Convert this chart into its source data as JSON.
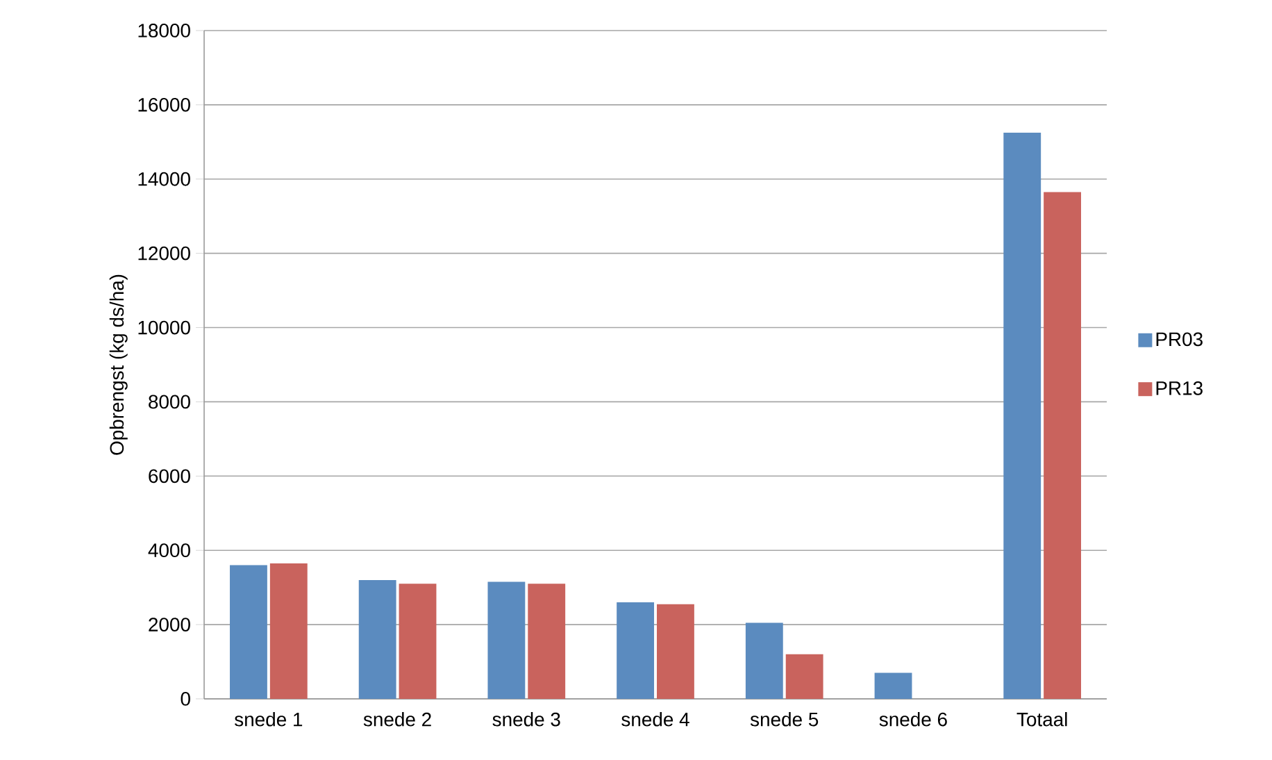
{
  "chart_data": {
    "type": "bar",
    "ylabel": "Opbrengst (kg ds/ha)",
    "categories": [
      "snede 1",
      "snede 2",
      "snede 3",
      "snede 4",
      "snede 5",
      "snede 6",
      "Totaal"
    ],
    "series": [
      {
        "name": "PR03",
        "color": "#5b8bbf",
        "values": [
          3600,
          3200,
          3150,
          2600,
          2050,
          700,
          15250
        ]
      },
      {
        "name": "PR13",
        "color": "#c9635d",
        "values": [
          3650,
          3100,
          3100,
          2550,
          1200,
          null,
          13650
        ]
      }
    ],
    "ylim": [
      0,
      18000
    ],
    "yticks": [
      0,
      2000,
      4000,
      6000,
      8000,
      10000,
      12000,
      14000,
      16000,
      18000
    ],
    "grid": "y",
    "legend": "right"
  }
}
